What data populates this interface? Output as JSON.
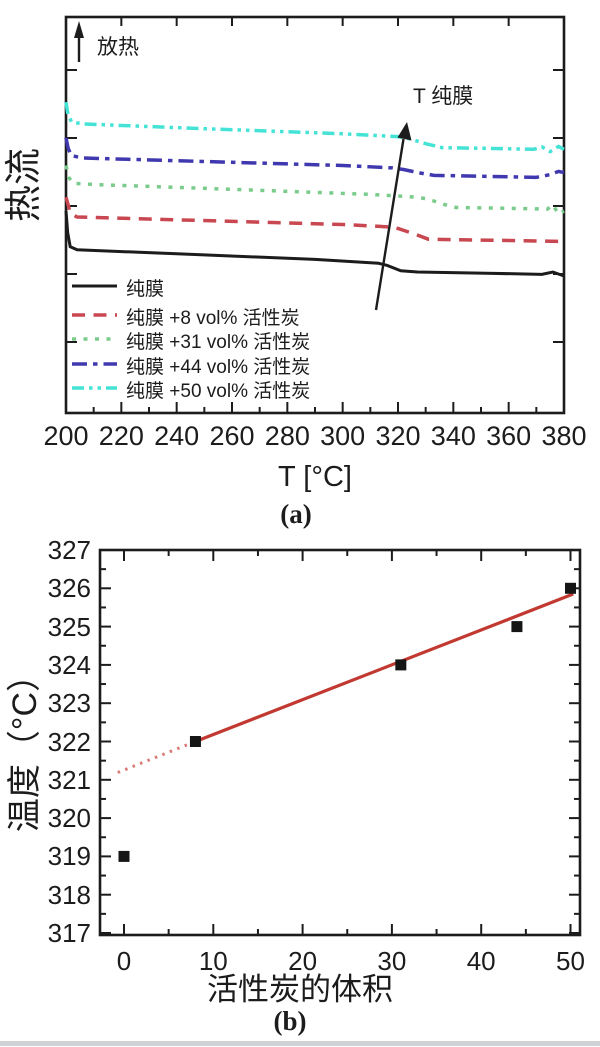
{
  "figure": {
    "background": "#ffffff",
    "divider_color": "#d0d3d5"
  },
  "chart_data": [
    {
      "panel": "a",
      "type": "line",
      "caption": "(a)",
      "xlabel": "T [°C]",
      "ylabel": "热流",
      "annotations": {
        "exothermic_label": "放热",
        "transition_label": "T 纯膜"
      },
      "xlim": [
        200,
        380
      ],
      "x_ticks": [
        "200",
        "220",
        "240",
        "260",
        "280",
        "300",
        "320",
        "340",
        "360",
        "380"
      ],
      "x_tick_values": [
        200,
        220,
        240,
        260,
        280,
        300,
        320,
        340,
        360,
        380
      ],
      "x_minor_step": 10,
      "ylim": [
        0,
        10
      ],
      "y_units": "heat flow, arbitrary units, exothermic up",
      "legend_position": "bottom-left",
      "series": [
        {
          "name": "纯膜",
          "color": "#1c1c1c",
          "style": "solid",
          "width": 3,
          "points": [
            [
              200,
              5.1
            ],
            [
              200.6,
              4.55
            ],
            [
              201.5,
              4.2
            ],
            [
              204,
              4.12
            ],
            [
              240,
              4.02
            ],
            [
              290,
              3.88
            ],
            [
              313,
              3.78
            ],
            [
              316,
              3.73
            ],
            [
              321,
              3.59
            ],
            [
              327,
              3.56
            ],
            [
              352,
              3.53
            ],
            [
              372,
              3.5
            ],
            [
              376,
              3.56
            ],
            [
              380,
              3.46
            ]
          ]
        },
        {
          "name": "纯膜 +8 vol% 活性炭",
          "color": "#c84750",
          "style": "dashed",
          "width": 3.5,
          "points": [
            [
              200,
              5.45
            ],
            [
              200.6,
              5.3
            ],
            [
              201.5,
              5.05
            ],
            [
              204,
              4.95
            ],
            [
              240,
              4.88
            ],
            [
              300,
              4.76
            ],
            [
              317,
              4.7
            ],
            [
              320,
              4.66
            ],
            [
              326,
              4.52
            ],
            [
              331,
              4.39
            ],
            [
              345,
              4.37
            ],
            [
              365,
              4.35
            ],
            [
              380,
              4.33
            ]
          ]
        },
        {
          "name": "纯膜 +31 vol% 活性炭",
          "color": "#7bcc8c",
          "style": "dotted",
          "width": 3.5,
          "points": [
            [
              200,
              6.25
            ],
            [
              201,
              5.95
            ],
            [
              202.5,
              5.8
            ],
            [
              210,
              5.77
            ],
            [
              260,
              5.65
            ],
            [
              310,
              5.52
            ],
            [
              327,
              5.45
            ],
            [
              331,
              5.4
            ],
            [
              337,
              5.26
            ],
            [
              341,
              5.19
            ],
            [
              360,
              5.17
            ],
            [
              374,
              5.15
            ],
            [
              376,
              5.26
            ],
            [
              378,
              5.02
            ],
            [
              380,
              5.1
            ]
          ]
        },
        {
          "name": "纯膜 +44 vol% 活性炭",
          "color": "#4038ae",
          "style": "dash-dot",
          "width": 3.5,
          "points": [
            [
              200,
              6.95
            ],
            [
              200.8,
              6.68
            ],
            [
              202,
              6.5
            ],
            [
              206,
              6.44
            ],
            [
              250,
              6.35
            ],
            [
              300,
              6.25
            ],
            [
              318,
              6.19
            ],
            [
              322,
              6.15
            ],
            [
              328,
              6.06
            ],
            [
              333,
              6.0
            ],
            [
              350,
              5.98
            ],
            [
              370,
              5.95
            ],
            [
              375,
              6.02
            ],
            [
              378,
              6.1
            ],
            [
              380,
              6.07
            ]
          ]
        },
        {
          "name": "纯膜 +50 vol% 活性炭",
          "color": "#44e3d6",
          "style": "dash-dot-dot",
          "width": 3.5,
          "points": [
            [
              200,
              7.85
            ],
            [
              200.7,
              7.55
            ],
            [
              202,
              7.35
            ],
            [
              206,
              7.3
            ],
            [
              250,
              7.18
            ],
            [
              300,
              7.05
            ],
            [
              320,
              6.98
            ],
            [
              324,
              6.93
            ],
            [
              330,
              6.8
            ],
            [
              336,
              6.7
            ],
            [
              355,
              6.68
            ],
            [
              369,
              6.66
            ],
            [
              372,
              6.72
            ],
            [
              375,
              6.6
            ],
            [
              378,
              6.73
            ],
            [
              380,
              6.66
            ]
          ]
        }
      ]
    },
    {
      "panel": "b",
      "type": "scatter",
      "caption": "(b)",
      "xlabel": "活性炭的体积",
      "ylabel": "温度（°C）",
      "xlim": [
        -2.7,
        51.1
      ],
      "ylim": [
        316.95,
        327.05
      ],
      "x_ticks": [
        "0",
        "10",
        "20",
        "30",
        "40",
        "50"
      ],
      "x_tick_values": [
        0,
        10,
        20,
        30,
        40,
        50
      ],
      "x_minor_step": 5,
      "y_ticks": [
        "317",
        "318",
        "319",
        "320",
        "321",
        "322",
        "323",
        "324",
        "325",
        "326",
        "327"
      ],
      "y_tick_values": [
        317,
        318,
        319,
        320,
        321,
        322,
        323,
        324,
        325,
        326,
        327
      ],
      "y_minor_step": 0.5,
      "points": [
        [
          0,
          319
        ],
        [
          8,
          322
        ],
        [
          31,
          324
        ],
        [
          44,
          325
        ],
        [
          50,
          326
        ]
      ],
      "marker": {
        "shape": "square",
        "color": "#151515",
        "size": 11
      },
      "fit_line": {
        "solid_color": "#c13931",
        "solid": [
          [
            8,
            322
          ],
          [
            50.3,
            325.85
          ]
        ],
        "dotted_color": "#d97b74",
        "dotted": [
          [
            -0.7,
            321.19
          ],
          [
            8,
            322
          ]
        ]
      }
    }
  ]
}
